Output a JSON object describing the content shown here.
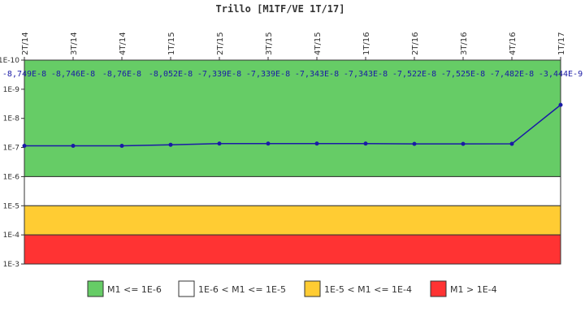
{
  "chart_data": {
    "type": "line",
    "title": "Trillo [M1TF/VE 1T/17]",
    "y_scale": "log",
    "y_inverted": true,
    "y_ticks": [
      "1E-10",
      "1E-9",
      "1E-8",
      "1E-7",
      "1E-6",
      "1E-5",
      "1E-4",
      "1E-3"
    ],
    "categories": [
      "2T/14",
      "3T/14",
      "4T/14",
      "1T/15",
      "2T/15",
      "3T/15",
      "4T/15",
      "1T/16",
      "2T/16",
      "3T/16",
      "4T/16",
      "1T/17"
    ],
    "data_labels": [
      "-8,749E-8",
      "-8,746E-8",
      "-8,76E-8",
      "-8,052E-8",
      "-7,339E-8",
      "-7,339E-8",
      "-7,343E-8",
      "-7,343E-8",
      "-7,522E-8",
      "-7,525E-8",
      "-7,482E-8",
      "-3,444E-9"
    ],
    "series": [
      {
        "values": [
          -8.749e-08,
          -8.746e-08,
          -8.76e-08,
          -8.052e-08,
          -7.339e-08,
          -7.339e-08,
          -7.343e-08,
          -7.343e-08,
          -7.522e-08,
          -7.525e-08,
          -7.482e-08,
          -3.444e-09
        ]
      }
    ],
    "series_color": "#1a1aa6",
    "bands": [
      {
        "label": "M1 <= 1E-6",
        "min": 1e-10,
        "max": 1e-06,
        "color": "#66cc66"
      },
      {
        "label": "1E-6 < M1 <= 1E-5",
        "min": 1e-06,
        "max": 1e-05,
        "color": "#ffffff"
      },
      {
        "label": "1E-5 < M1 <= 1E-4",
        "min": 1e-05,
        "max": 0.0001,
        "color": "#ffcc33"
      },
      {
        "label": "M1 > 1E-4",
        "min": 0.0001,
        "max": 0.001,
        "color": "#ff3333"
      }
    ],
    "legend_position": "bottom"
  }
}
